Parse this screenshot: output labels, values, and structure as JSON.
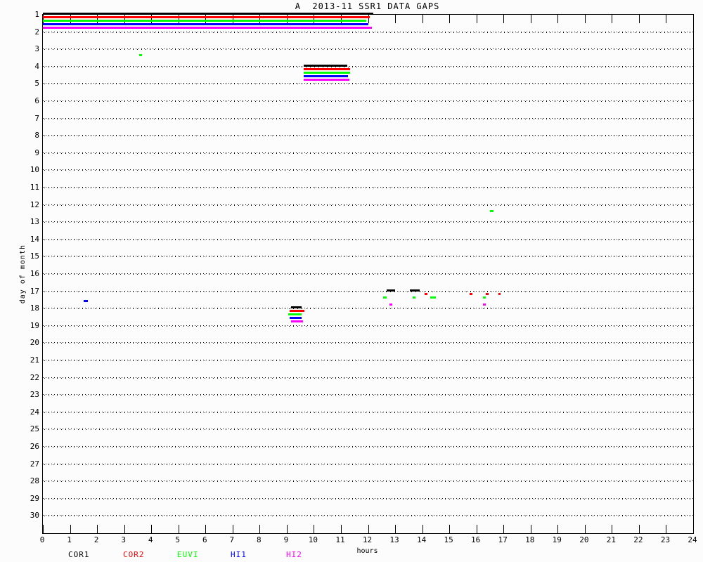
{
  "page": {
    "background": "#fcfcfc",
    "frame_color": "#000000"
  },
  "chart_data": {
    "type": "gantt",
    "title": "A  2013-11 SSR1 DATA GAPS",
    "xlabel": "hours",
    "ylabel": "day of month",
    "xlim": [
      0,
      24
    ],
    "x_ticks": [
      0,
      1,
      2,
      3,
      4,
      5,
      6,
      7,
      8,
      9,
      10,
      11,
      12,
      13,
      14,
      15,
      16,
      17,
      18,
      19,
      20,
      21,
      22,
      23,
      24
    ],
    "days": [
      1,
      2,
      3,
      4,
      5,
      6,
      7,
      8,
      9,
      10,
      11,
      12,
      13,
      14,
      15,
      16,
      17,
      18,
      19,
      20,
      21,
      22,
      23,
      24,
      25,
      26,
      27,
      28,
      29,
      30
    ],
    "grid": "horizontal dotted line per day",
    "legend_position": "bottom",
    "instruments": [
      {
        "name": "COR1",
        "color": "#000000"
      },
      {
        "name": "COR2",
        "color": "#ff0000"
      },
      {
        "name": "EUVI",
        "color": "#00ff00"
      },
      {
        "name": "HI1",
        "color": "#0000ff"
      },
      {
        "name": "HI2",
        "color": "#ff00ff"
      }
    ],
    "gaps": [
      {
        "day": 1,
        "instrument": "COR1",
        "start": 0.0,
        "end": 12.2
      },
      {
        "day": 1,
        "instrument": "COR2",
        "start": 0.0,
        "end": 12.06
      },
      {
        "day": 1,
        "instrument": "EUVI",
        "start": 0.0,
        "end": 11.93
      },
      {
        "day": 1,
        "instrument": "HI1",
        "start": 0.0,
        "end": 12.01
      },
      {
        "day": 1,
        "instrument": "HI2",
        "start": 0.0,
        "end": 12.14
      },
      {
        "day": 3,
        "instrument": "EUVI",
        "start": 3.55,
        "end": 3.65
      },
      {
        "day": 4,
        "instrument": "COR1",
        "start": 9.63,
        "end": 11.23
      },
      {
        "day": 4,
        "instrument": "COR2",
        "start": 9.63,
        "end": 11.34
      },
      {
        "day": 4,
        "instrument": "EUVI",
        "start": 9.63,
        "end": 11.34
      },
      {
        "day": 4,
        "instrument": "HI1",
        "start": 9.63,
        "end": 11.26
      },
      {
        "day": 4,
        "instrument": "HI2",
        "start": 9.63,
        "end": 11.31
      },
      {
        "day": 12,
        "instrument": "EUVI",
        "start": 16.5,
        "end": 16.62
      },
      {
        "day": 17,
        "instrument": "HI1",
        "start": 1.5,
        "end": 1.65
      },
      {
        "day": 17,
        "instrument": "COR1",
        "start": 12.7,
        "end": 13.0
      },
      {
        "day": 17,
        "instrument": "COR1",
        "start": 13.55,
        "end": 13.9
      },
      {
        "day": 17,
        "instrument": "COR2",
        "start": 14.1,
        "end": 14.2
      },
      {
        "day": 17,
        "instrument": "COR2",
        "start": 15.75,
        "end": 15.85
      },
      {
        "day": 17,
        "instrument": "COR2",
        "start": 16.35,
        "end": 16.45
      },
      {
        "day": 17,
        "instrument": "COR2",
        "start": 16.8,
        "end": 16.9
      },
      {
        "day": 17,
        "instrument": "EUVI",
        "start": 12.55,
        "end": 12.7
      },
      {
        "day": 17,
        "instrument": "EUVI",
        "start": 13.65,
        "end": 13.75
      },
      {
        "day": 17,
        "instrument": "EUVI",
        "start": 14.3,
        "end": 14.5
      },
      {
        "day": 17,
        "instrument": "EUVI",
        "start": 16.25,
        "end": 16.35
      },
      {
        "day": 17,
        "instrument": "HI2",
        "start": 12.8,
        "end": 12.9
      },
      {
        "day": 17,
        "instrument": "HI2",
        "start": 16.25,
        "end": 16.35
      },
      {
        "day": 18,
        "instrument": "COR1",
        "start": 9.15,
        "end": 9.55
      },
      {
        "day": 18,
        "instrument": "COR2",
        "start": 9.1,
        "end": 9.65
      },
      {
        "day": 18,
        "instrument": "EUVI",
        "start": 9.05,
        "end": 9.55
      },
      {
        "day": 18,
        "instrument": "HI1",
        "start": 9.1,
        "end": 9.55
      },
      {
        "day": 18,
        "instrument": "HI2",
        "start": 9.15,
        "end": 9.6
      }
    ]
  }
}
